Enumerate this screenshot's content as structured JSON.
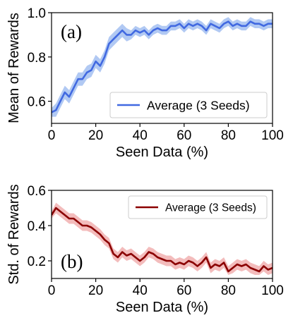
{
  "chart_data": [
    {
      "type": "line",
      "panel_tag": "(a)",
      "xlabel": "Seen Data (%)",
      "ylabel": "Mean of Rewards",
      "xlim": [
        0,
        100
      ],
      "ylim": [
        0.5,
        1.0
      ],
      "xticks": [
        0,
        20,
        40,
        60,
        80,
        100
      ],
      "yticks": [
        0.6,
        0.8,
        1.0
      ],
      "xtick_labels": [
        "0",
        "20",
        "40",
        "60",
        "80",
        "100"
      ],
      "ytick_labels": [
        "0.6",
        "0.8",
        "1.0"
      ],
      "legend_position": "lower-right",
      "grid": false,
      "colors": {
        "line": "#4169e1",
        "band": "#a9c3f2"
      },
      "series": [
        {
          "name": "Average (3 Seeds)",
          "x": [
            0,
            2,
            4,
            6,
            8,
            10,
            12,
            14,
            16,
            18,
            20,
            22,
            24,
            26,
            28,
            30,
            32,
            34,
            36,
            38,
            40,
            42,
            44,
            46,
            48,
            50,
            52,
            54,
            56,
            58,
            60,
            62,
            64,
            66,
            68,
            70,
            72,
            74,
            76,
            78,
            80,
            82,
            84,
            86,
            88,
            90,
            92,
            94,
            96,
            98,
            100
          ],
          "y": [
            0.55,
            0.56,
            0.6,
            0.64,
            0.62,
            0.66,
            0.7,
            0.7,
            0.73,
            0.74,
            0.78,
            0.76,
            0.8,
            0.86,
            0.88,
            0.9,
            0.92,
            0.9,
            0.9,
            0.92,
            0.91,
            0.92,
            0.9,
            0.92,
            0.93,
            0.92,
            0.92,
            0.94,
            0.94,
            0.95,
            0.93,
            0.95,
            0.94,
            0.95,
            0.94,
            0.92,
            0.95,
            0.94,
            0.93,
            0.95,
            0.96,
            0.94,
            0.95,
            0.94,
            0.94,
            0.96,
            0.95,
            0.95,
            0.94,
            0.95,
            0.95
          ],
          "lower": [
            0.53,
            0.53,
            0.57,
            0.61,
            0.59,
            0.63,
            0.67,
            0.67,
            0.7,
            0.71,
            0.75,
            0.73,
            0.77,
            0.83,
            0.85,
            0.87,
            0.89,
            0.87,
            0.88,
            0.9,
            0.89,
            0.9,
            0.88,
            0.9,
            0.91,
            0.9,
            0.9,
            0.92,
            0.92,
            0.93,
            0.91,
            0.93,
            0.92,
            0.93,
            0.92,
            0.9,
            0.93,
            0.92,
            0.91,
            0.93,
            0.94,
            0.92,
            0.93,
            0.92,
            0.92,
            0.94,
            0.93,
            0.93,
            0.92,
            0.93,
            0.93
          ],
          "upper": [
            0.57,
            0.59,
            0.63,
            0.67,
            0.65,
            0.69,
            0.73,
            0.73,
            0.76,
            0.77,
            0.81,
            0.79,
            0.83,
            0.89,
            0.91,
            0.93,
            0.95,
            0.93,
            0.92,
            0.94,
            0.93,
            0.94,
            0.92,
            0.94,
            0.95,
            0.94,
            0.94,
            0.96,
            0.96,
            0.97,
            0.95,
            0.97,
            0.96,
            0.97,
            0.96,
            0.94,
            0.97,
            0.96,
            0.95,
            0.97,
            0.98,
            0.96,
            0.97,
            0.96,
            0.96,
            0.98,
            0.97,
            0.97,
            0.96,
            0.97,
            0.97
          ]
        }
      ]
    },
    {
      "type": "line",
      "panel_tag": "(b)",
      "xlabel": "Seen Data (%)",
      "ylabel": "Std. of Rewards",
      "xlim": [
        0,
        100
      ],
      "ylim": [
        0.1,
        0.6
      ],
      "xticks": [
        0,
        20,
        40,
        60,
        80,
        100
      ],
      "yticks": [
        0.2,
        0.4,
        0.6
      ],
      "xtick_labels": [
        "0",
        "20",
        "40",
        "60",
        "80",
        "100"
      ],
      "ytick_labels": [
        "0.2",
        "0.4",
        "0.6"
      ],
      "legend_position": "top-right",
      "grid": false,
      "colors": {
        "line": "#8b0000",
        "band": "#f2b5b5"
      },
      "series": [
        {
          "name": "Average (3 Seeds)",
          "x": [
            0,
            2,
            4,
            6,
            8,
            10,
            12,
            14,
            16,
            18,
            20,
            22,
            24,
            26,
            28,
            30,
            32,
            34,
            36,
            38,
            40,
            42,
            44,
            46,
            48,
            50,
            52,
            54,
            56,
            58,
            60,
            62,
            64,
            66,
            68,
            70,
            72,
            74,
            76,
            78,
            80,
            82,
            84,
            86,
            88,
            90,
            92,
            94,
            96,
            98,
            100
          ],
          "y": [
            0.46,
            0.5,
            0.48,
            0.46,
            0.44,
            0.44,
            0.42,
            0.4,
            0.4,
            0.39,
            0.37,
            0.35,
            0.32,
            0.3,
            0.24,
            0.22,
            0.25,
            0.23,
            0.24,
            0.22,
            0.2,
            0.22,
            0.25,
            0.24,
            0.22,
            0.21,
            0.2,
            0.2,
            0.18,
            0.19,
            0.18,
            0.2,
            0.19,
            0.17,
            0.19,
            0.22,
            0.16,
            0.18,
            0.17,
            0.19,
            0.14,
            0.16,
            0.18,
            0.17,
            0.18,
            0.16,
            0.15,
            0.14,
            0.17,
            0.15,
            0.16
          ],
          "lower": [
            0.44,
            0.47,
            0.45,
            0.43,
            0.41,
            0.41,
            0.39,
            0.37,
            0.37,
            0.36,
            0.34,
            0.32,
            0.29,
            0.27,
            0.21,
            0.19,
            0.22,
            0.2,
            0.21,
            0.19,
            0.17,
            0.19,
            0.22,
            0.21,
            0.19,
            0.18,
            0.17,
            0.17,
            0.15,
            0.16,
            0.15,
            0.17,
            0.16,
            0.14,
            0.16,
            0.19,
            0.13,
            0.15,
            0.14,
            0.16,
            0.12,
            0.13,
            0.15,
            0.14,
            0.15,
            0.13,
            0.12,
            0.12,
            0.14,
            0.12,
            0.13
          ],
          "upper": [
            0.48,
            0.53,
            0.51,
            0.49,
            0.47,
            0.47,
            0.45,
            0.43,
            0.43,
            0.42,
            0.4,
            0.38,
            0.35,
            0.33,
            0.27,
            0.25,
            0.28,
            0.26,
            0.27,
            0.25,
            0.23,
            0.25,
            0.28,
            0.27,
            0.25,
            0.24,
            0.23,
            0.23,
            0.21,
            0.22,
            0.21,
            0.23,
            0.22,
            0.2,
            0.22,
            0.25,
            0.19,
            0.21,
            0.2,
            0.22,
            0.17,
            0.19,
            0.21,
            0.2,
            0.21,
            0.19,
            0.18,
            0.17,
            0.2,
            0.18,
            0.19
          ]
        }
      ]
    }
  ]
}
